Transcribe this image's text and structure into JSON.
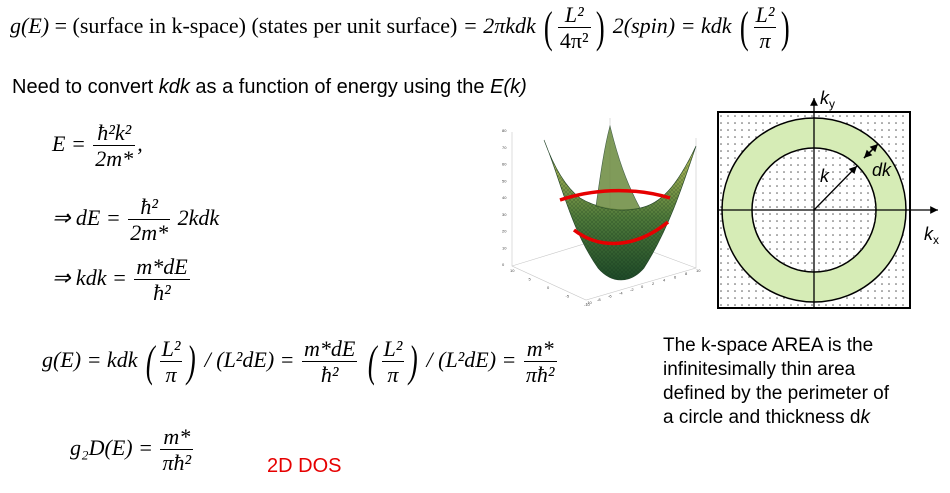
{
  "equations": {
    "top": {
      "lhs": "g(E)",
      "factor1": "(surface in k-space)",
      "factor2": "(states per unit surface)",
      "mid": "= 2πkdk",
      "frac1_num": "L²",
      "frac1_den": "4π²",
      "spin": "2(spin) = kdk",
      "frac2_num": "L²",
      "frac2_den": "π"
    },
    "energy": {
      "e_lhs": "E =",
      "e_num": "ħ²k²",
      "e_den": "2m*",
      "e_tail": ",",
      "de_lhs": "⇒ dE =",
      "de_num": "ħ²",
      "de_den": "2m*",
      "de_tail": "2kdk",
      "kdk_lhs": "⇒ kdk =",
      "kdk_num": "m*dE",
      "kdk_den": "ħ²"
    },
    "result": {
      "lhs": "g(E) = kdk",
      "p1_num": "L²",
      "p1_den": "π",
      "div1": "/ (L²dE) =",
      "f_num": "m*dE",
      "f_den": "ħ²",
      "p2_num": "L²",
      "p2_den": "π",
      "div2": "/ (L²dE) =",
      "r_num": "m*",
      "r_den": "πħ²"
    },
    "g2d": {
      "lhs": "g₂D(E) =",
      "num": "m*",
      "den": "πħ²"
    }
  },
  "intro": {
    "text_before": "Need to convert ",
    "kdk": "kdk",
    "text_mid": " as a function of energy using the ",
    "ek": "E(k)"
  },
  "dos_label": "2D DOS",
  "kspace": {
    "ky": "k",
    "ky_sub": "y",
    "kx": "k",
    "kx_sub": "x",
    "k": "k",
    "dk": "dk"
  },
  "caption": {
    "line1": "The k-space AREA is the",
    "line2": "infinitesimally thin area",
    "line3": "defined by the perimeter of",
    "line4_before": "a circle and thickness d",
    "line4_k": "k"
  },
  "plot3d": {
    "z_ticks": [
      "80",
      "70",
      "60",
      "50",
      "40",
      "30",
      "20",
      "10",
      "0"
    ],
    "x_ticks": [
      "-10",
      "-8",
      "-6",
      "-4",
      "-2",
      "0",
      "2",
      "4",
      "6",
      "8",
      "10"
    ],
    "y_ticks": [
      "10",
      "5",
      "0",
      "-5",
      "-10"
    ]
  },
  "colors": {
    "ring": "#d6ecb6",
    "red": "#e60000",
    "surface_dark": "#1e4a28",
    "surface_light": "#c8c860"
  }
}
